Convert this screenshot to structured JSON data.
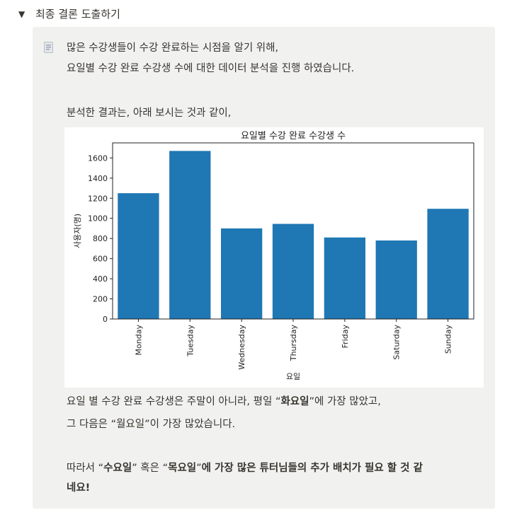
{
  "toggle": {
    "arrow": "▼",
    "title": "최종 결론 도출하기"
  },
  "callout": {
    "icon": "page-icon",
    "intro_line1": "많은 수강생들이 수강 완료하는 시점을 알기 위해,",
    "intro_line2": "요일별 수강 완료 수강생 수에 대한 데이터 분석을 진행 하였습니다.",
    "result_line": "분석한 결과는, 아래 보시는 것과 같이,",
    "conclusion_line1_pre": "요일 별 수강 완료 수강생은 주말이 아니라, 평일 “",
    "conclusion_line1_bold": "화요일",
    "conclusion_line1_post": "”에 가장 많았고,",
    "conclusion_line2": "그 다음은 “월요일”이 가장 많았습니다.",
    "final_pre": "따라서 “",
    "final_wed": "수요일",
    "final_mid": "” 혹은 “",
    "final_thu": "목요일",
    "final_post": "”",
    "final_bold_tail": "에 가장 많은 튜터님들의 추가 배치가 필요 할 것 같",
    "final_line2": "네요!"
  },
  "chart_data": {
    "type": "bar",
    "title": "요일별 수강 완료 수강생 수",
    "xlabel": "요일",
    "ylabel": "사용자(명)",
    "categories": [
      "Monday",
      "Tuesday",
      "Wednesday",
      "Thursday",
      "Friday",
      "Saturday",
      "Sunday"
    ],
    "values": [
      1250,
      1670,
      900,
      945,
      810,
      780,
      1095
    ],
    "ylim": [
      0,
      1750
    ],
    "yticks": [
      "0",
      "200",
      "400",
      "600",
      "800",
      "1000",
      "1200",
      "1400",
      "1600"
    ],
    "color": "#1f77b4",
    "grid": false
  }
}
